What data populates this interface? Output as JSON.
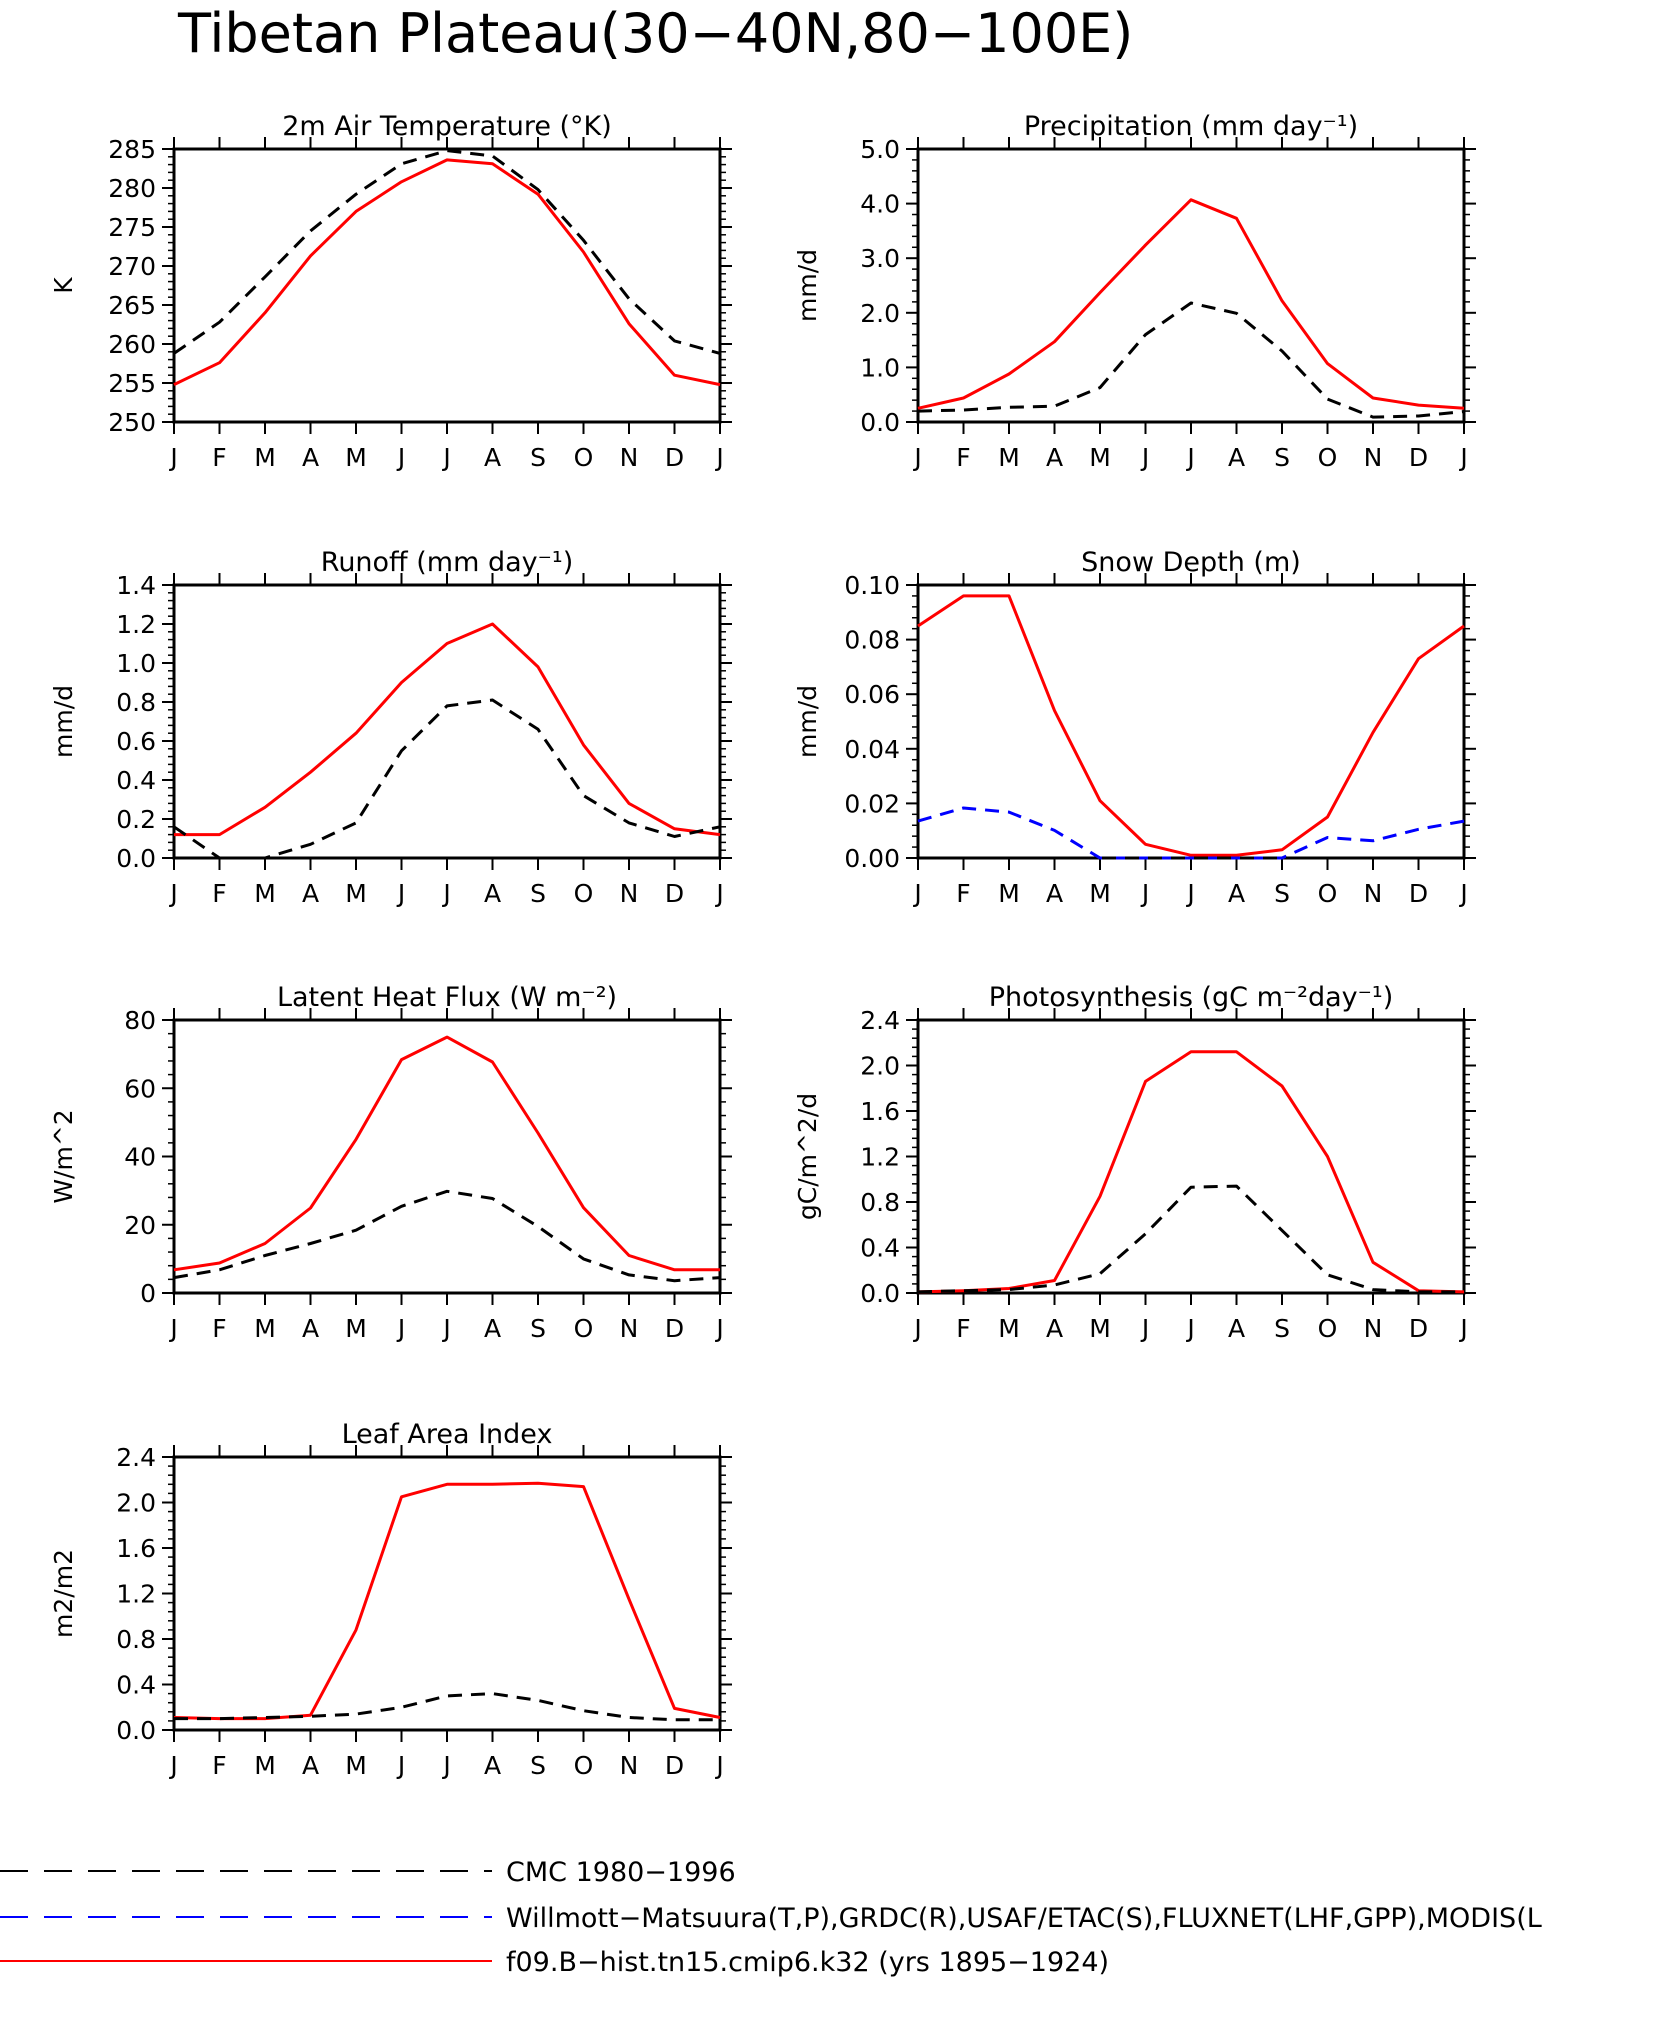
{
  "figure_title": "Tibetan Plateau(30−40N,80−100E)",
  "colors": {
    "obs1": "#000000",
    "obs2": "#0000ff",
    "model": "#ff0000"
  },
  "months": [
    "J",
    "F",
    "M",
    "A",
    "M",
    "J",
    "J",
    "A",
    "S",
    "O",
    "N",
    "D",
    "J"
  ],
  "legend": [
    {
      "key": "obs1",
      "label": "CMC 1980−1996",
      "style": "dashed"
    },
    {
      "key": "obs2",
      "label": "Willmott−Matsuura(T,P),GRDC(R),USAF/ETAC(S),FLUXNET(LHF,GPP),MODIS(L",
      "style": "dashed"
    },
    {
      "key": "model",
      "label": "f09.B−hist.tn15.cmip6.k32 (yrs 1895−1924)",
      "style": "solid"
    }
  ],
  "chart_data": [
    {
      "type": "line",
      "title": "2m Air Temperature (°K)",
      "ylabel": "K",
      "ylim": [
        250,
        285
      ],
      "yticks": [
        "250",
        "255",
        "260",
        "265",
        "270",
        "275",
        "280",
        "285"
      ],
      "ytick_values": [
        250,
        255,
        260,
        265,
        270,
        275,
        280,
        285
      ],
      "series": [
        {
          "key": "model",
          "values": [
            254.8,
            257.6,
            264.0,
            271.3,
            277.0,
            280.8,
            283.6,
            283.1,
            279.2,
            271.8,
            262.6,
            256.0,
            254.8
          ]
        },
        {
          "key": "obs1",
          "values": [
            258.8,
            262.8,
            268.6,
            274.5,
            279.2,
            283.1,
            284.8,
            284.1,
            279.8,
            273.3,
            265.8,
            260.4,
            258.8
          ]
        }
      ]
    },
    {
      "type": "line",
      "title": "Precipitation (mm day⁻¹)",
      "ylabel": "mm/d",
      "ylim": [
        0,
        5
      ],
      "yticks": [
        "0.0",
        "1.0",
        "2.0",
        "3.0",
        "4.0",
        "5.0"
      ],
      "ytick_values": [
        0,
        1,
        2,
        3,
        4,
        5
      ],
      "series": [
        {
          "key": "model",
          "values": [
            0.25,
            0.44,
            0.88,
            1.47,
            2.37,
            3.24,
            4.07,
            3.73,
            2.22,
            1.07,
            0.44,
            0.31,
            0.25
          ]
        },
        {
          "key": "obs1",
          "values": [
            0.2,
            0.22,
            0.27,
            0.29,
            0.63,
            1.6,
            2.18,
            1.99,
            1.3,
            0.42,
            0.09,
            0.11,
            0.19
          ]
        }
      ]
    },
    {
      "type": "line",
      "title": "Runoff (mm day⁻¹)",
      "ylabel": "mm/d",
      "ylim": [
        0,
        1.4
      ],
      "yticks": [
        "0.0",
        "0.2",
        "0.4",
        "0.6",
        "0.8",
        "1.0",
        "1.2",
        "1.4"
      ],
      "ytick_values": [
        0,
        0.2,
        0.4,
        0.6,
        0.8,
        1.0,
        1.2,
        1.4
      ],
      "series": [
        {
          "key": "model",
          "values": [
            0.12,
            0.12,
            0.26,
            0.44,
            0.64,
            0.9,
            1.1,
            1.2,
            0.98,
            0.58,
            0.28,
            0.15,
            0.12
          ]
        },
        {
          "key": "obs1",
          "values": [
            0.16,
            0.0,
            0.0,
            0.07,
            0.18,
            0.55,
            0.78,
            0.81,
            0.66,
            0.32,
            0.18,
            0.11,
            0.16
          ]
        }
      ]
    },
    {
      "type": "line",
      "title": "Snow Depth (m)",
      "ylabel": "mm/d",
      "ylim": [
        0,
        0.1
      ],
      "yticks": [
        "0.00",
        "0.02",
        "0.04",
        "0.06",
        "0.08",
        "0.10"
      ],
      "ytick_values": [
        0,
        0.02,
        0.04,
        0.06,
        0.08,
        0.1
      ],
      "series": [
        {
          "key": "model",
          "values": [
            0.085,
            0.096,
            0.096,
            0.054,
            0.021,
            0.005,
            0.001,
            0.001,
            0.003,
            0.015,
            0.046,
            0.073,
            0.085
          ]
        },
        {
          "key": "obs2",
          "values": [
            0.0135,
            0.0183,
            0.0168,
            0.0101,
            0.0,
            0.0,
            0.0,
            0.0,
            0.0,
            0.0075,
            0.0063,
            0.0105,
            0.0135
          ]
        },
        {
          "key": "obs1",
          "values": [
            0,
            0,
            0,
            0,
            0,
            0,
            0,
            0,
            0,
            0,
            0,
            0,
            0
          ]
        }
      ]
    },
    {
      "type": "line",
      "title": "Latent Heat Flux (W m⁻²)",
      "ylabel": "W/m^2",
      "ylim": [
        0,
        80
      ],
      "yticks": [
        "0",
        "20",
        "40",
        "60",
        "80"
      ],
      "ytick_values": [
        0,
        20,
        40,
        60,
        80
      ],
      "series": [
        {
          "key": "model",
          "values": [
            6.8,
            8.8,
            14.5,
            24.9,
            45.0,
            68.4,
            75.0,
            67.7,
            46.9,
            25.0,
            11.0,
            6.8,
            6.8
          ]
        },
        {
          "key": "obs1",
          "values": [
            4.5,
            6.8,
            11.0,
            14.5,
            18.4,
            25.4,
            29.8,
            27.7,
            19.5,
            10.0,
            5.3,
            3.6,
            4.5
          ]
        }
      ]
    },
    {
      "type": "line",
      "title": "Photosynthesis (gC m⁻²day⁻¹)",
      "ylabel": "gC/m^2/d",
      "ylim": [
        0,
        2.4
      ],
      "yticks": [
        "0.0",
        "0.4",
        "0.8",
        "1.2",
        "1.6",
        "2.0",
        "2.4"
      ],
      "ytick_values": [
        0,
        0.4,
        0.8,
        1.2,
        1.6,
        2.0,
        2.4
      ],
      "series": [
        {
          "key": "model",
          "values": [
            0.01,
            0.02,
            0.04,
            0.11,
            0.85,
            1.86,
            2.12,
            2.12,
            1.82,
            1.2,
            0.27,
            0.02,
            0.01
          ]
        },
        {
          "key": "obs1",
          "values": [
            0.01,
            0.02,
            0.03,
            0.07,
            0.17,
            0.52,
            0.93,
            0.94,
            0.55,
            0.16,
            0.03,
            0.01,
            0.01
          ]
        }
      ]
    },
    {
      "type": "line",
      "title": "Leaf Area Index",
      "ylabel": "m2/m2",
      "ylim": [
        0,
        2.4
      ],
      "yticks": [
        "0.0",
        "0.4",
        "0.8",
        "1.2",
        "1.6",
        "2.0",
        "2.4"
      ],
      "ytick_values": [
        0,
        0.4,
        0.8,
        1.2,
        1.6,
        2.0,
        2.4
      ],
      "series": [
        {
          "key": "model",
          "values": [
            0.11,
            0.1,
            0.1,
            0.13,
            0.88,
            2.05,
            2.16,
            2.16,
            2.17,
            2.14,
            1.15,
            0.19,
            0.11
          ]
        },
        {
          "key": "obs1",
          "values": [
            0.1,
            0.1,
            0.11,
            0.12,
            0.14,
            0.2,
            0.3,
            0.32,
            0.26,
            0.17,
            0.11,
            0.09,
            0.09
          ]
        }
      ]
    }
  ]
}
